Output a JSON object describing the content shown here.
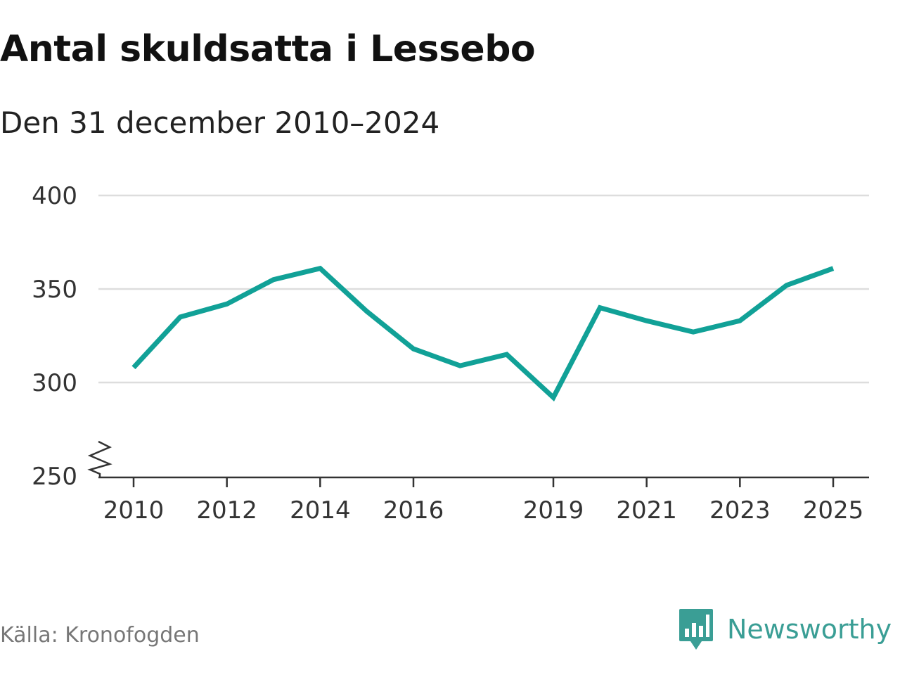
{
  "header": {
    "title": "Antal skuldsatta i Lessebo",
    "subtitle": "Den 31 december 2010–2024"
  },
  "footer": {
    "source": "Källa: Kronofogden",
    "brand": "Newsworthy"
  },
  "colors": {
    "line": "#11a197",
    "grid": "#dddddd",
    "brand": "#3a9e95"
  },
  "chart_data": {
    "type": "line",
    "title": "Antal skuldsatta i Lessebo",
    "subtitle": "Den 31 december 2010–2024",
    "xlabel": "",
    "ylabel": "",
    "xlim": [
      2010,
      2025
    ],
    "ylim": [
      250,
      400
    ],
    "y_axis_break": true,
    "grid": "horizontal",
    "x_ticks": [
      2010,
      2012,
      2014,
      2016,
      2019,
      2021,
      2023,
      2025
    ],
    "y_ticks": [
      250,
      300,
      350,
      400
    ],
    "series": [
      {
        "x": [
          2010,
          2011,
          2012,
          2013,
          2014,
          2015,
          2016,
          2017,
          2018,
          2019,
          2020,
          2021,
          2022,
          2023,
          2024,
          2025
        ],
        "values": [
          308,
          335,
          342,
          355,
          361,
          338,
          318,
          309,
          315,
          292,
          340,
          333,
          327,
          333,
          352,
          361
        ]
      }
    ]
  }
}
